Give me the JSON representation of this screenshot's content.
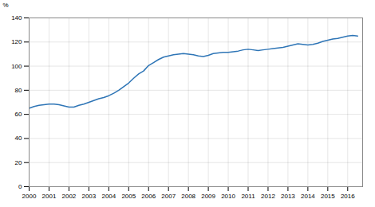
{
  "chart_data": {
    "type": "line",
    "ylabel": "%",
    "x": [
      2000.0,
      2000.25,
      2000.5,
      2000.75,
      2001.0,
      2001.25,
      2001.5,
      2001.75,
      2002.0,
      2002.25,
      2002.5,
      2002.75,
      2003.0,
      2003.25,
      2003.5,
      2003.75,
      2004.0,
      2004.25,
      2004.5,
      2004.75,
      2005.0,
      2005.25,
      2005.5,
      2005.75,
      2006.0,
      2006.25,
      2006.5,
      2006.75,
      2007.0,
      2007.25,
      2007.5,
      2007.75,
      2008.0,
      2008.25,
      2008.5,
      2008.75,
      2009.0,
      2009.25,
      2009.5,
      2009.75,
      2010.0,
      2010.25,
      2010.5,
      2010.75,
      2011.0,
      2011.25,
      2011.5,
      2011.75,
      2012.0,
      2012.25,
      2012.5,
      2012.75,
      2013.0,
      2013.25,
      2013.5,
      2013.75,
      2014.0,
      2014.25,
      2014.5,
      2014.75,
      2015.0,
      2015.25,
      2015.5,
      2015.75,
      2016.0,
      2016.25,
      2016.5
    ],
    "values": [
      65.0,
      66.5,
      67.5,
      68.0,
      68.5,
      68.5,
      68.0,
      67.0,
      66.0,
      66.0,
      67.5,
      68.5,
      70.0,
      71.5,
      73.0,
      74.0,
      75.5,
      77.5,
      80.0,
      83.0,
      86.0,
      90.0,
      93.5,
      96.0,
      100.5,
      103.0,
      105.5,
      107.5,
      108.5,
      109.5,
      110.0,
      110.5,
      110.0,
      109.5,
      108.5,
      108.0,
      109.0,
      110.5,
      111.0,
      111.5,
      111.5,
      112.0,
      112.5,
      113.5,
      114.0,
      113.5,
      113.0,
      113.5,
      114.0,
      114.5,
      115.0,
      115.5,
      116.5,
      117.5,
      118.5,
      118.0,
      117.5,
      118.0,
      119.0,
      120.5,
      121.5,
      122.5,
      123.0,
      124.0,
      125.0,
      125.5,
      125.0
    ],
    "color": "#2E75B6",
    "xlim": [
      2000.0,
      2016.75
    ],
    "xticks": [
      2000,
      2001,
      2002,
      2003,
      2004,
      2005,
      2006,
      2007,
      2008,
      2009,
      2010,
      2011,
      2012,
      2013,
      2014,
      2015,
      2016
    ],
    "ylim": [
      0,
      140
    ],
    "yticks": [
      0,
      20,
      40,
      60,
      80,
      100,
      120,
      140
    ],
    "grid": true
  }
}
